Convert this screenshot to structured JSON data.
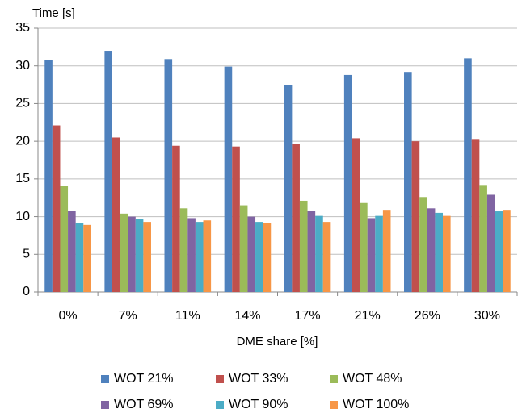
{
  "chart_data": {
    "type": "bar",
    "y_label": "Time [s]",
    "x_label": "DME share [%]",
    "categories": [
      "0%",
      "7%",
      "11%",
      "14%",
      "17%",
      "21%",
      "26%",
      "30%"
    ],
    "series": [
      {
        "name": "WOT 21%",
        "color": "#4f81bd",
        "values": [
          30.8,
          32.0,
          30.9,
          29.9,
          27.5,
          28.8,
          29.2,
          31.0
        ]
      },
      {
        "name": "WOT 33%",
        "color": "#c0504d",
        "values": [
          22.1,
          20.5,
          19.4,
          19.3,
          19.6,
          20.4,
          20.0,
          20.3
        ]
      },
      {
        "name": "WOT 48%",
        "color": "#9bbb59",
        "values": [
          14.1,
          10.4,
          11.1,
          11.5,
          12.1,
          11.8,
          12.6,
          14.2
        ]
      },
      {
        "name": "WOT 69%",
        "color": "#8064a2",
        "values": [
          10.8,
          10.0,
          9.8,
          10.0,
          10.8,
          9.8,
          11.1,
          12.9
        ]
      },
      {
        "name": "WOT 90%",
        "color": "#4bacc6",
        "values": [
          9.1,
          9.7,
          9.3,
          9.3,
          10.1,
          10.1,
          10.5,
          10.7
        ]
      },
      {
        "name": "WOT 100%",
        "color": "#f79646",
        "values": [
          8.9,
          9.3,
          9.5,
          9.1,
          9.3,
          10.9,
          10.1,
          10.9
        ]
      }
    ],
    "ylim": [
      0,
      35
    ],
    "yticks": [
      0,
      5,
      10,
      15,
      20,
      25,
      30,
      35
    ],
    "grid": true,
    "legend": "bottom"
  }
}
